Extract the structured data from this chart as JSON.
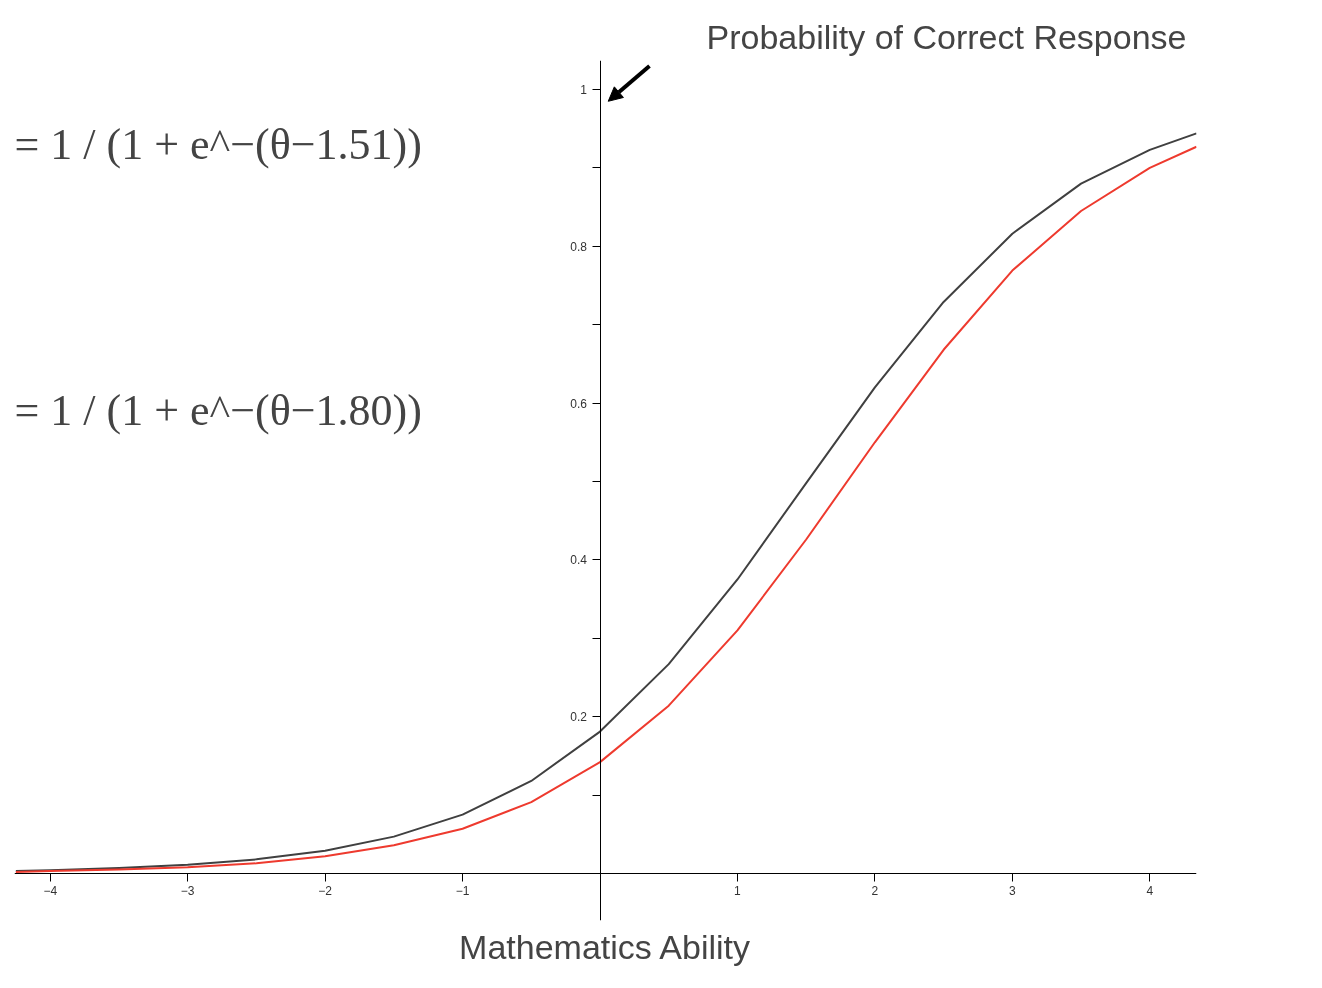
{
  "chart_data": {
    "type": "line",
    "ylabel": "Probability of Correct Response",
    "xlabel": "Mathematics Ability",
    "annotations": [
      "= 1 / (1 + e^−(θ−1.51))",
      "= 1 / (1 + e^−(θ−1.80))"
    ],
    "x": [
      -4.25,
      -4,
      -3.5,
      -3,
      -2.5,
      -2,
      -1.5,
      -1,
      -0.5,
      0,
      0.5,
      1,
      1.5,
      2,
      2.5,
      3,
      3.5,
      4,
      4.34
    ],
    "series": [
      {
        "color": "#404040",
        "values": [
          0.003,
          0.004,
          0.007,
          0.011,
          0.018,
          0.029,
          0.047,
          0.075,
          0.118,
          0.181,
          0.267,
          0.375,
          0.498,
          0.62,
          0.729,
          0.816,
          0.88,
          0.923,
          0.944
        ]
      },
      {
        "color": "#ee3a2e",
        "values": [
          0.002,
          0.003,
          0.005,
          0.008,
          0.013,
          0.022,
          0.036,
          0.057,
          0.091,
          0.142,
          0.214,
          0.31,
          0.426,
          0.55,
          0.668,
          0.769,
          0.845,
          0.9,
          0.927
        ]
      }
    ],
    "xlim": [
      -4.26,
      4.34
    ],
    "ylim": [
      -0.06,
      1.037
    ],
    "xticks": [
      -4,
      -3,
      -2,
      -1,
      1,
      2,
      3,
      4
    ],
    "yticks": [
      {
        "value": 0.1,
        "label": null
      },
      0.2,
      {
        "value": 0.3,
        "label": null
      },
      0.4,
      {
        "value": 0.5,
        "label": null
      },
      0.6,
      {
        "value": 0.7,
        "label": null
      },
      0.8,
      {
        "value": 0.9,
        "label": null
      },
      1
    ],
    "grid": false,
    "marker": "none",
    "line_style": "solid"
  }
}
